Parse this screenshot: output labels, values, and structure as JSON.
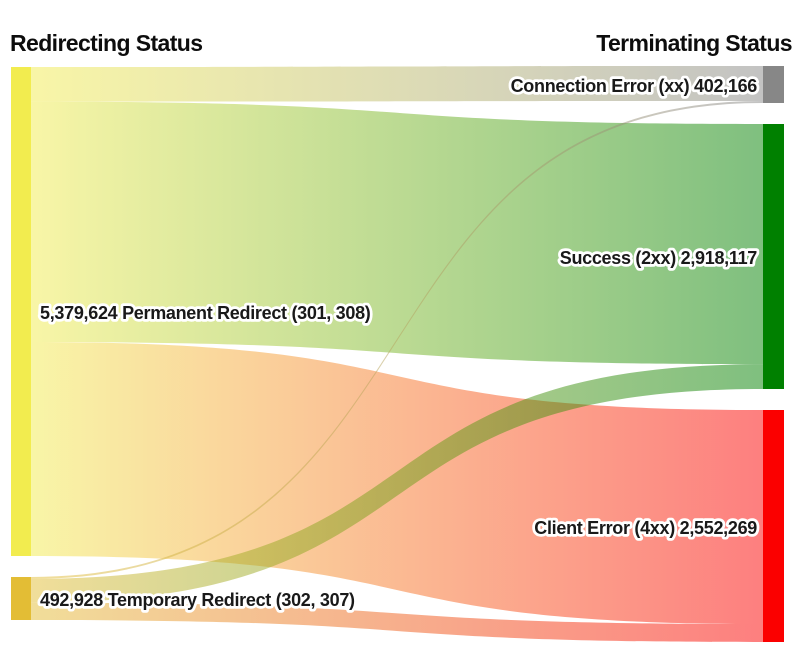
{
  "header": {
    "left_title": "Redirecting Status",
    "right_title": "Terminating Status"
  },
  "chart_data": {
    "type": "sankey",
    "flow_direction": "left-to-right",
    "background_color": "#ffffff",
    "link_opacity": 0.5,
    "link_style": "gradient-source-to-target",
    "label_halo_color": "#ffffff",
    "label_text_color": "#191919",
    "link_values_estimated_from_band_widths": true,
    "columns": [
      {
        "side": "left",
        "title": "Redirecting Status"
      },
      {
        "side": "right",
        "title": "Terminating Status"
      }
    ],
    "nodes": [
      {
        "id": "permanent_redirect",
        "column": "left",
        "name": "Permanent Redirect (301, 308)",
        "value": 5379624,
        "value_text": "5,379,624",
        "label": "5,379,624 Permanent Redirect (301, 308)",
        "color": "#f2ec4f"
      },
      {
        "id": "temporary_redirect",
        "column": "left",
        "name": "Temporary Redirect (302, 307)",
        "value": 492928,
        "value_text": "492,928",
        "label": "492,928 Temporary Redirect (302, 307)",
        "color": "#e3bd35"
      },
      {
        "id": "connection_error",
        "column": "right",
        "name": "Connection Error (xx)",
        "value": 402166,
        "value_text": "402,166",
        "label": "Connection Error (xx) 402,166",
        "color": "#878787"
      },
      {
        "id": "success",
        "column": "right",
        "name": "Success (2xx)",
        "value": 2918117,
        "value_text": "2,918,117",
        "label": "Success (2xx) 2,918,117",
        "color": "#008000"
      },
      {
        "id": "client_error",
        "column": "right",
        "name": "Client Error (4xx)",
        "value": 2552269,
        "value_text": "2,552,269",
        "label": "Client Error (4xx) 2,552,269",
        "color": "#fb0000"
      }
    ],
    "links": [
      {
        "source": "permanent_redirect",
        "target": "connection_error",
        "value": 380166
      },
      {
        "source": "permanent_redirect",
        "target": "success",
        "value": 2645117
      },
      {
        "source": "permanent_redirect",
        "target": "client_error",
        "value": 2354341
      },
      {
        "source": "temporary_redirect",
        "target": "connection_error",
        "value": 22000
      },
      {
        "source": "temporary_redirect",
        "target": "success",
        "value": 273000
      },
      {
        "source": "temporary_redirect",
        "target": "client_error",
        "value": 197928
      }
    ]
  }
}
